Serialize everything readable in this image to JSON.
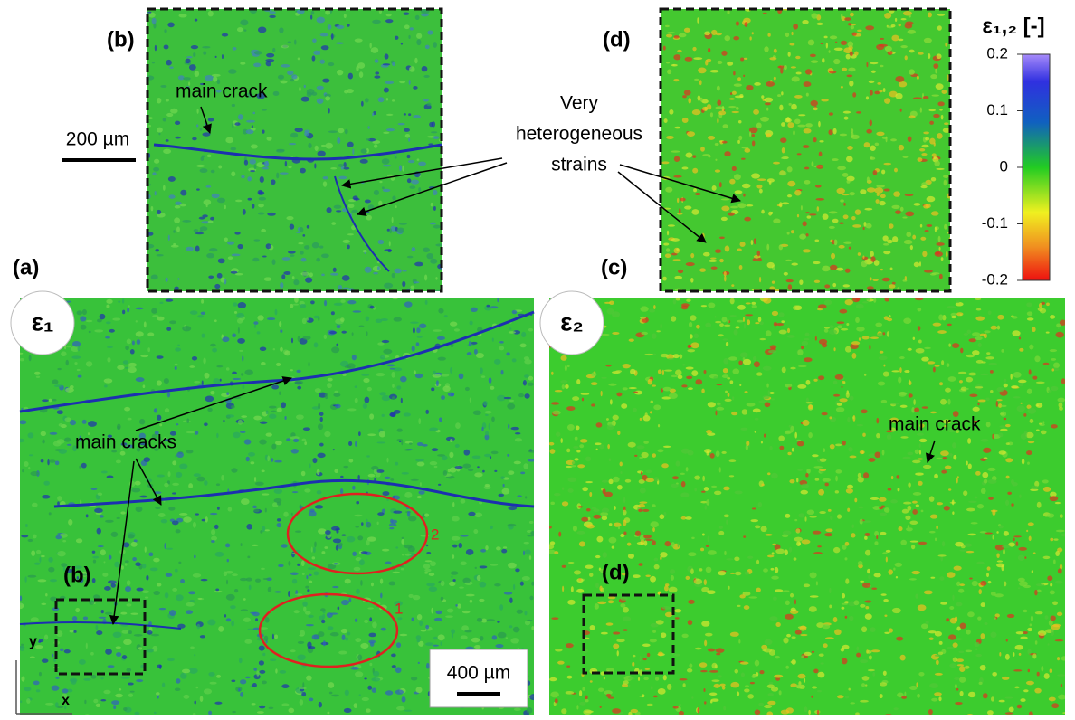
{
  "panels": {
    "a": {
      "label": "(a)",
      "symbol": "ε₁",
      "annotation": "main cracks",
      "zoom_label": "(b)",
      "ellipse_labels": [
        "1",
        "2"
      ],
      "scale_bar": "400 µm",
      "axis_y": "y",
      "axis_x": "x"
    },
    "c": {
      "label": "(c)",
      "symbol": "ε₂",
      "annotation": "main crack",
      "zoom_label": "(d)"
    },
    "b_inset": {
      "label": "(b)",
      "annotation": "main crack",
      "scale_bar": "200 µm"
    },
    "d_inset": {
      "label": "(d)"
    },
    "shared_annotation": [
      "Very",
      "heterogeneous",
      "strains"
    ]
  },
  "colorbar": {
    "title": "ε₁,₂ [-]",
    "lim": [
      -0.2,
      0.2
    ],
    "ticks": [
      0.2,
      0.1,
      0,
      -0.1,
      -0.2
    ]
  }
}
